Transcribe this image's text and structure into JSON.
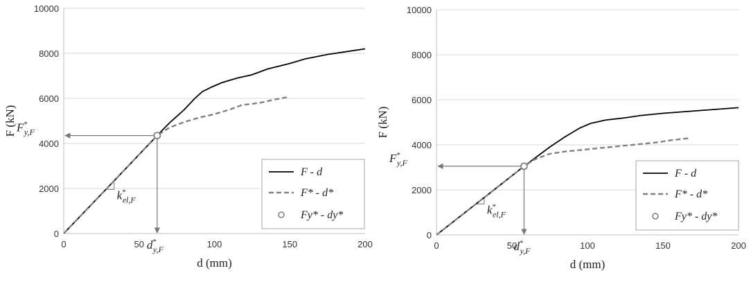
{
  "chart_data": [
    {
      "type": "line",
      "xlabel": "d (mm)",
      "ylabel": "F (kN)",
      "xlim": [
        0,
        200
      ],
      "ylim": [
        0,
        10000
      ],
      "xticks": [
        "0",
        "50",
        "100",
        "150",
        "200"
      ],
      "yticks": [
        "0",
        "2000",
        "4000",
        "6000",
        "8000",
        "10000"
      ],
      "grid": "horizontal",
      "legend_position": "bottom-right",
      "series": [
        {
          "name": "F - d",
          "style": "solid",
          "color": "#000000",
          "x": [
            0,
            20,
            40,
            62,
            70,
            80,
            87,
            92,
            98,
            105,
            115,
            125,
            135,
            150,
            160,
            175,
            200
          ],
          "y": [
            0,
            1400,
            2800,
            4350,
            4900,
            5500,
            6000,
            6300,
            6500,
            6700,
            6900,
            7050,
            7300,
            7550,
            7750,
            7950,
            8200
          ]
        },
        {
          "name": "F* - d*",
          "style": "dashed",
          "color": "#808080",
          "x": [
            0,
            20,
            40,
            62,
            70,
            80,
            90,
            100,
            110,
            118,
            130,
            140,
            148
          ],
          "y": [
            0,
            1400,
            2800,
            4350,
            4700,
            4950,
            5150,
            5300,
            5500,
            5700,
            5800,
            5950,
            6050
          ]
        },
        {
          "name": "Fy* - dy*",
          "style": "marker",
          "color": "#808080",
          "x": [
            62
          ],
          "y": [
            4350
          ]
        }
      ],
      "annotations": {
        "f_label": "F*y,F",
        "d_label": "d*y,F",
        "k_label": "k*el,F"
      }
    },
    {
      "type": "line",
      "xlabel": "d (mm)",
      "ylabel": "F (kN)",
      "xlim": [
        0,
        200
      ],
      "ylim": [
        0,
        10000
      ],
      "xticks": [
        "0",
        "50",
        "100",
        "150",
        "200"
      ],
      "yticks": [
        "0",
        "2000",
        "4000",
        "6000",
        "8000",
        "10000"
      ],
      "grid": "horizontal",
      "legend_position": "bottom-right",
      "series": [
        {
          "name": "F - d",
          "style": "solid",
          "color": "#000000",
          "x": [
            0,
            20,
            40,
            58,
            65,
            75,
            85,
            95,
            102,
            112,
            125,
            135,
            150,
            170,
            200
          ],
          "y": [
            0,
            1050,
            2100,
            3050,
            3400,
            3900,
            4350,
            4750,
            4950,
            5100,
            5200,
            5300,
            5400,
            5500,
            5650
          ]
        },
        {
          "name": "F* - d*",
          "style": "dashed",
          "color": "#808080",
          "x": [
            0,
            20,
            40,
            58,
            65,
            75,
            85,
            100,
            115,
            130,
            145,
            155,
            168
          ],
          "y": [
            0,
            1050,
            2100,
            3050,
            3350,
            3600,
            3700,
            3800,
            3900,
            4000,
            4100,
            4200,
            4300
          ]
        },
        {
          "name": "Fy* - dy*",
          "style": "marker",
          "color": "#808080",
          "x": [
            58
          ],
          "y": [
            3050
          ]
        }
      ],
      "annotations": {
        "f_label": "F*y,F",
        "d_label": "d*y,F",
        "k_label": "k*el,F"
      }
    }
  ]
}
